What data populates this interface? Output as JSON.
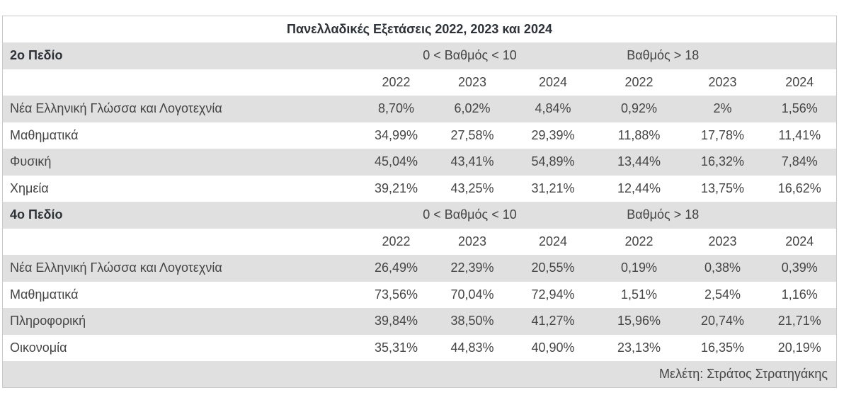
{
  "colors": {
    "stripe_bg": "#e0e0e0",
    "border": "#c9c9c9",
    "text": "#454545",
    "heading_text": "#2d3238"
  },
  "table": {
    "title": "Πανελλαδικές Εξετάσεις 2022, 2023 και 2024",
    "footer": "Μελέτη: Στράτος Στρατηγάκης",
    "sections": [
      {
        "label": "2ο Πεδίο",
        "group_headers": [
          "0 < Βαθμός < 10",
          "Βαθμός > 18"
        ],
        "years": [
          "2022",
          "2023",
          "2024",
          "2022",
          "2023",
          "2024"
        ],
        "rows": [
          {
            "subject": "Νέα Ελληνική Γλώσσα και Λογοτεχνία",
            "values": [
              "8,70%",
              "6,02%",
              "4,84%",
              "0,92%",
              "2%",
              "1,56%"
            ]
          },
          {
            "subject": "Μαθηματικά",
            "values": [
              "34,99%",
              "27,58%",
              "29,39%",
              "11,88%",
              "17,78%",
              "11,41%"
            ]
          },
          {
            "subject": "Φυσική",
            "values": [
              "45,04%",
              "43,41%",
              "54,89%",
              "13,44%",
              "16,32%",
              "7,84%"
            ]
          },
          {
            "subject": "Χημεία",
            "values": [
              "39,21%",
              "43,25%",
              "31,21%",
              "12,44%",
              "13,75%",
              "16,62%"
            ]
          }
        ]
      },
      {
        "label": "4ο Πεδίο",
        "group_headers": [
          "0 < Βαθμός < 10",
          "Βαθμός > 18"
        ],
        "years": [
          "2022",
          "2023",
          "2024",
          "2022",
          "2023",
          "2024"
        ],
        "rows": [
          {
            "subject": "Νέα Ελληνική Γλώσσα και Λογοτεχνία",
            "values": [
              "26,49%",
              "22,39%",
              "20,55%",
              "0,19%",
              "0,38%",
              "0,39%"
            ]
          },
          {
            "subject": "Μαθηματικά",
            "values": [
              "73,56%",
              "70,04%",
              "72,94%",
              "1,51%",
              "2,54%",
              "1,16%"
            ]
          },
          {
            "subject": "Πληροφορική",
            "values": [
              "39,84%",
              "38,50%",
              "41,27%",
              "15,96%",
              "20,74%",
              "21,71%"
            ]
          },
          {
            "subject": "Οικονομία",
            "values": [
              "35,31%",
              "44,83%",
              "40,90%",
              "23,13%",
              "16,35%",
              "20,19%"
            ]
          }
        ]
      }
    ]
  },
  "chart_data": [
    {
      "type": "table",
      "title": "Πανελλαδικές Εξετάσεις 2022, 2023 και 2024",
      "section": "2ο Πεδίο",
      "column_groups": [
        "0 < Βαθμός < 10",
        "Βαθμός > 18"
      ],
      "years": [
        "2022",
        "2023",
        "2024"
      ],
      "rows": [
        {
          "subject": "Νέα Ελληνική Γλώσσα και Λογοτεχνία",
          "pct_below_10": [
            8.7,
            6.02,
            4.84
          ],
          "pct_above_18": [
            0.92,
            2,
            1.56
          ]
        },
        {
          "subject": "Μαθηματικά",
          "pct_below_10": [
            34.99,
            27.58,
            29.39
          ],
          "pct_above_18": [
            11.88,
            17.78,
            11.41
          ]
        },
        {
          "subject": "Φυσική",
          "pct_below_10": [
            45.04,
            43.41,
            54.89
          ],
          "pct_above_18": [
            13.44,
            16.32,
            7.84
          ]
        },
        {
          "subject": "Χημεία",
          "pct_below_10": [
            39.21,
            43.25,
            31.21
          ],
          "pct_above_18": [
            12.44,
            13.75,
            16.62
          ]
        }
      ]
    },
    {
      "type": "table",
      "title": "Πανελλαδικές Εξετάσεις 2022, 2023 και 2024",
      "section": "4ο Πεδίο",
      "column_groups": [
        "0 < Βαθμός < 10",
        "Βαθμός > 18"
      ],
      "years": [
        "2022",
        "2023",
        "2024"
      ],
      "rows": [
        {
          "subject": "Νέα Ελληνική Γλώσσα και Λογοτεχνία",
          "pct_below_10": [
            26.49,
            22.39,
            20.55
          ],
          "pct_above_18": [
            0.19,
            0.38,
            0.39
          ]
        },
        {
          "subject": "Μαθηματικά",
          "pct_below_10": [
            73.56,
            70.04,
            72.94
          ],
          "pct_above_18": [
            1.51,
            2.54,
            1.16
          ]
        },
        {
          "subject": "Πληροφορική",
          "pct_below_10": [
            39.84,
            38.5,
            41.27
          ],
          "pct_above_18": [
            15.96,
            20.74,
            21.71
          ]
        },
        {
          "subject": "Οικονομία",
          "pct_below_10": [
            35.31,
            44.83,
            40.9
          ],
          "pct_above_18": [
            23.13,
            16.35,
            20.19
          ]
        }
      ]
    }
  ]
}
